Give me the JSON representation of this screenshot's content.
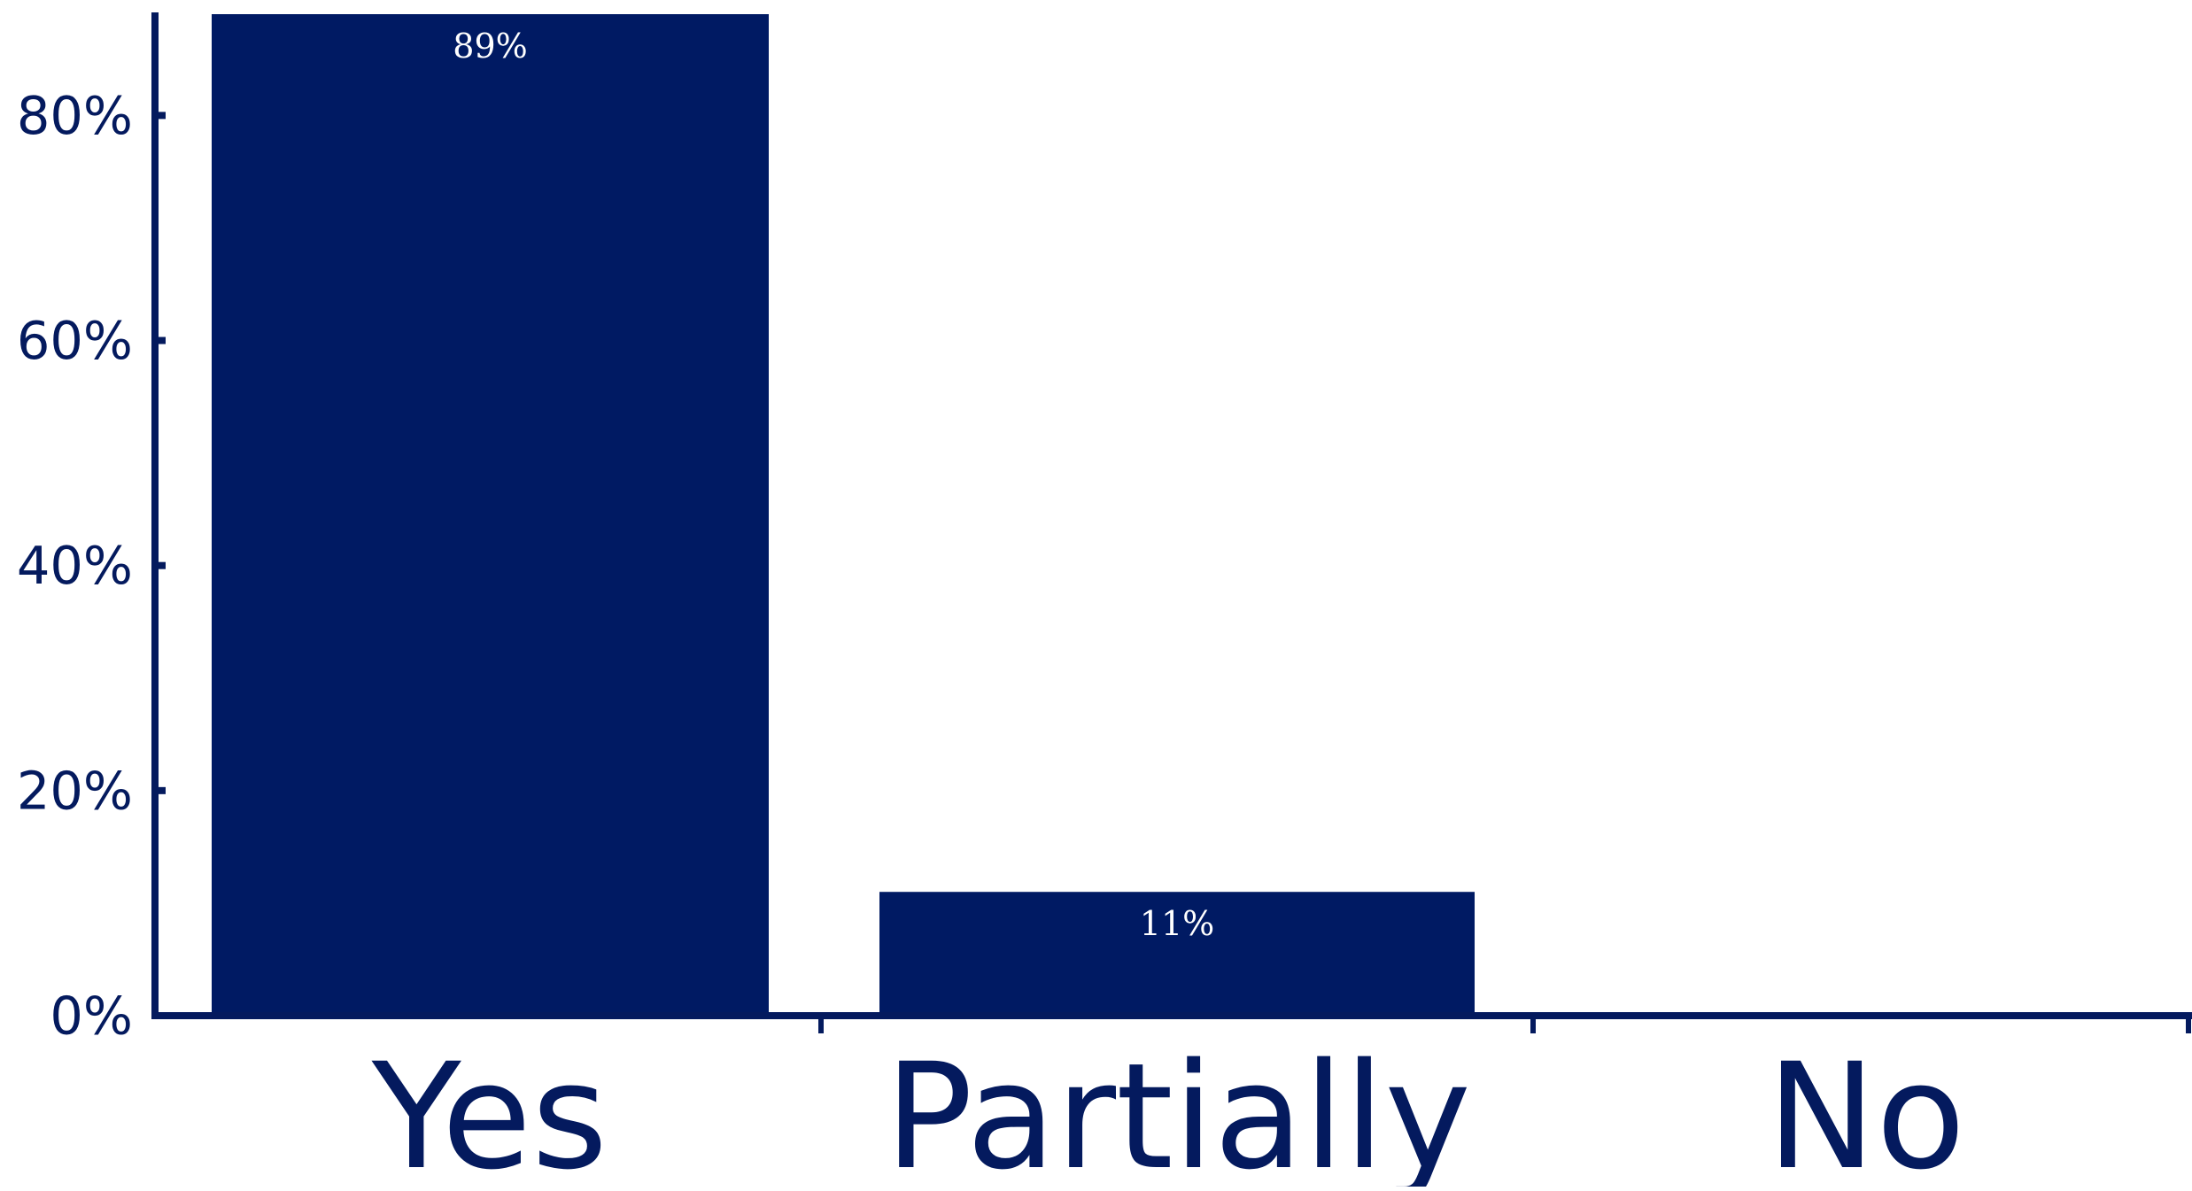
{
  "chart_data": {
    "type": "bar",
    "title": "",
    "xlabel": "",
    "ylabel": "",
    "categories": [
      "Yes",
      "Partially",
      "No"
    ],
    "values": [
      89,
      11,
      0
    ],
    "data_labels": [
      "89%",
      "11%",
      ""
    ],
    "ylim": [
      0,
      89
    ],
    "yticks": [
      0,
      20,
      40,
      60,
      80
    ],
    "ytick_labels": [
      "0%",
      "20%",
      "40%",
      "60%",
      "80%"
    ],
    "grid": false,
    "legend": "none",
    "colors": {
      "bar": "#001a63",
      "axis": "#041a5e",
      "label": "#041a5e",
      "data_label": "#ffffff"
    }
  }
}
